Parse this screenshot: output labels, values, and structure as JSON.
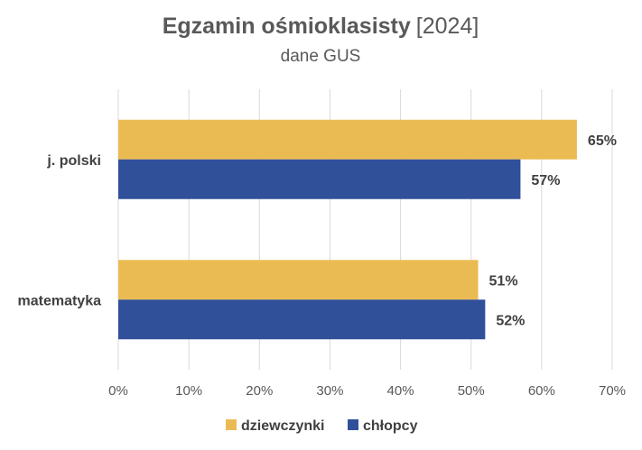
{
  "chart_data": {
    "type": "bar",
    "orientation": "horizontal",
    "title_main": "Egzamin ośmioklasisty",
    "title_year": "[2024]",
    "subtitle": "dane GUS",
    "categories": [
      "j. polski",
      "matematyka"
    ],
    "series": [
      {
        "name": "dziewczynki",
        "values": [
          65,
          51
        ],
        "color": "#EBBB53"
      },
      {
        "name": "chłopcy",
        "values": [
          57,
          52
        ],
        "color": "#31509A"
      }
    ],
    "data_labels": [
      [
        "65%",
        "51%"
      ],
      [
        "57%",
        "52%"
      ]
    ],
    "xlim": [
      0,
      70
    ],
    "x_ticks": [
      "0%",
      "10%",
      "20%",
      "30%",
      "40%",
      "50%",
      "60%",
      "70%"
    ],
    "grid": true,
    "legend_position": "bottom"
  }
}
